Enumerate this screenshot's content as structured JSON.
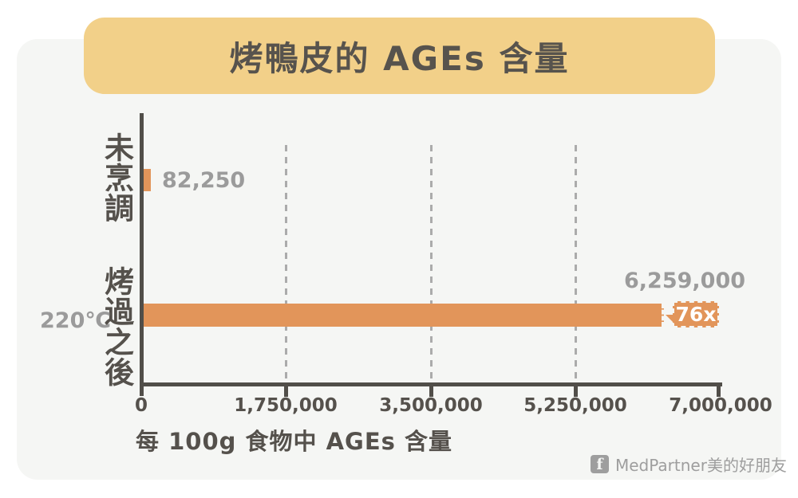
{
  "page": {
    "background_color": "#ffffff",
    "card_color": "#f5f6f4"
  },
  "chart_data": {
    "type": "bar",
    "orientation": "horizontal",
    "title": "烤鴨皮的 AGEs 含量",
    "title_bg_color": "#f2d089",
    "xlabel": "每 100g 食物中 AGEs 含量",
    "categories": [
      "未烹調",
      "烤過之後"
    ],
    "values": [
      82250,
      6259000
    ],
    "value_labels": [
      "82,250",
      "6,259,000"
    ],
    "xlim": [
      0,
      7000000
    ],
    "xticks": [
      0,
      1750000,
      3500000,
      5250000,
      7000000
    ],
    "xtick_labels": [
      "0",
      "1,750,000",
      "3,500,000",
      "5,250,000",
      "7,000,000"
    ],
    "grid": {
      "axis": "x",
      "style": "dashed",
      "positions": [
        1750000,
        3500000,
        5250000
      ]
    },
    "bar_color": "#e2955a",
    "axis_color": "#514e49",
    "value_label_color": "#9b9b9b",
    "annotations": {
      "multiplier": {
        "text": "76x",
        "bg": "#e2955a",
        "color": "#ffffff"
      },
      "temperature": {
        "text": "220℃",
        "color": "#9b9b9b"
      }
    },
    "legend_position": "none"
  },
  "footer": {
    "icon_letter": "f",
    "brand": "MedPartner美的好朋友"
  }
}
